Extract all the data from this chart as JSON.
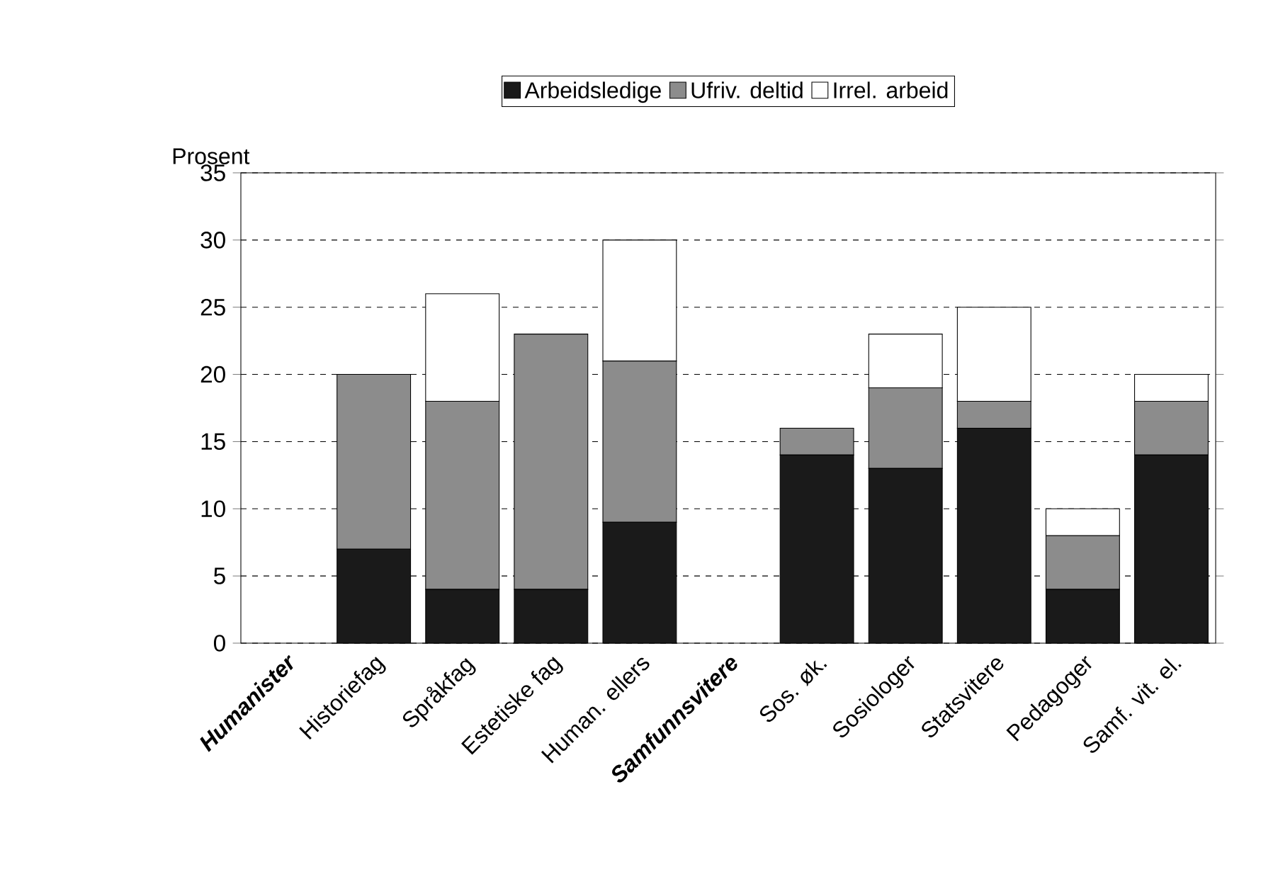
{
  "chart_data": {
    "type": "bar",
    "stacked": true,
    "ylabel": "Prosent",
    "categories": [
      "Humanister",
      "Historiefag",
      "Språkfag",
      "Estetiske fag",
      "Human. ellers",
      "Samfunnsvitere",
      "Sos. øk.",
      "Sosiologer",
      "Statsvitere",
      "Pedagoger",
      "Samf. vit. el."
    ],
    "series": [
      {
        "name": "Arbeidsledige",
        "color": "#1a1a1a",
        "values": [
          null,
          7,
          4,
          4,
          9,
          null,
          14,
          13,
          16,
          4,
          14
        ]
      },
      {
        "name": "Ufriv. deltid",
        "color": "#8c8c8c",
        "values": [
          null,
          13,
          14,
          19,
          12,
          null,
          2,
          6,
          2,
          4,
          4
        ]
      },
      {
        "name": "Irrel. arbeid",
        "color": "#ffffff",
        "values": [
          null,
          null,
          8,
          null,
          9,
          null,
          null,
          4,
          7,
          2,
          2
        ]
      }
    ],
    "ylim": [
      0,
      35
    ],
    "yticks": [
      0,
      5,
      10,
      15,
      20,
      25,
      30,
      35
    ],
    "grid": "y",
    "legend": "top"
  }
}
